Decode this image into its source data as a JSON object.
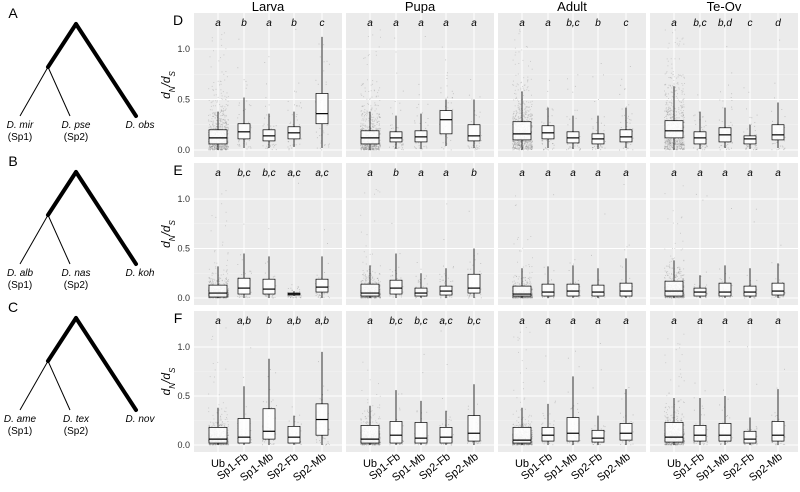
{
  "trees": [
    {
      "label": "A",
      "sp1": "D. mir",
      "sp1_tag": "(Sp1)",
      "sp2": "D. pse",
      "sp2_tag": "(Sp2)",
      "out": "D. obs"
    },
    {
      "label": "B",
      "sp1": "D. alb",
      "sp1_tag": "(Sp1)",
      "sp2": "D. nas",
      "sp2_tag": "(Sp2)",
      "out": "D. koh"
    },
    {
      "label": "C",
      "sp1": "D. ame",
      "sp1_tag": "(Sp1)",
      "sp2": "D. tex",
      "sp2_tag": "(Sp2)",
      "out": "D. nov"
    }
  ],
  "chart_data": {
    "type": "boxplot",
    "panel_rows": [
      "D",
      "E",
      "F"
    ],
    "stages": [
      "Larva",
      "Pupa",
      "Adult",
      "Te-Ov"
    ],
    "categories": [
      "Ub",
      "Sp1-Fb",
      "Sp1-Mb",
      "Sp2-Fb",
      "Sp2-Mb"
    ],
    "ylabel_main": "d",
    "ylabel_num_sub": "N",
    "ylabel_slash": "/d",
    "ylabel_den_sub": "S",
    "ylim": [
      0,
      1.25
    ],
    "yticks": [
      "0.0",
      "0.5",
      "1.0"
    ],
    "background": "#ebebeb",
    "grid": true,
    "rows": [
      {
        "panel": "D",
        "groups": [
          {
            "stage": "Larva",
            "letters": [
              "a",
              "b",
              "a",
              "b",
              "c"
            ],
            "boxes": [
              [
                0.0,
                0.06,
                0.12,
                0.2,
                0.38
              ],
              [
                0.02,
                0.11,
                0.18,
                0.26,
                0.52
              ],
              [
                0.02,
                0.09,
                0.14,
                0.2,
                0.36
              ],
              [
                0.03,
                0.11,
                0.17,
                0.23,
                0.38
              ],
              [
                0.02,
                0.26,
                0.36,
                0.56,
                1.12
              ]
            ]
          },
          {
            "stage": "Pupa",
            "letters": [
              "a",
              "a",
              "a",
              "a",
              "a"
            ],
            "boxes": [
              [
                0.0,
                0.06,
                0.12,
                0.19,
                0.38
              ],
              [
                0.01,
                0.08,
                0.12,
                0.18,
                0.34
              ],
              [
                0.01,
                0.08,
                0.13,
                0.19,
                0.36
              ],
              [
                0.04,
                0.16,
                0.3,
                0.39,
                0.5
              ],
              [
                0.02,
                0.09,
                0.14,
                0.25,
                0.5
              ]
            ]
          },
          {
            "stage": "Adult",
            "letters": [
              "a",
              "a",
              "b,c",
              "b",
              "c"
            ],
            "boxes": [
              [
                0.0,
                0.1,
                0.16,
                0.28,
                0.58
              ],
              [
                0.02,
                0.11,
                0.17,
                0.24,
                0.42
              ],
              [
                0.01,
                0.07,
                0.12,
                0.18,
                0.34
              ],
              [
                0.01,
                0.06,
                0.11,
                0.16,
                0.34
              ],
              [
                0.02,
                0.08,
                0.13,
                0.2,
                0.42
              ]
            ]
          },
          {
            "stage": "Te-Ov",
            "letters": [
              "a",
              "b,c",
              "b,d",
              "c",
              "d"
            ],
            "boxes": [
              [
                0.0,
                0.12,
                0.19,
                0.29,
                0.63
              ],
              [
                0.01,
                0.06,
                0.12,
                0.18,
                0.38
              ],
              [
                0.02,
                0.08,
                0.15,
                0.22,
                0.42
              ],
              [
                0.01,
                0.06,
                0.11,
                0.14,
                0.25
              ],
              [
                0.02,
                0.1,
                0.15,
                0.25,
                0.47
              ]
            ]
          }
        ]
      },
      {
        "panel": "E",
        "groups": [
          {
            "stage": "Larva",
            "letters": [
              "a",
              "b,c",
              "b,c",
              "a,c",
              "a,c"
            ],
            "boxes": [
              [
                0.0,
                0.01,
                0.05,
                0.13,
                0.32
              ],
              [
                0.0,
                0.04,
                0.1,
                0.2,
                0.45
              ],
              [
                0.0,
                0.04,
                0.09,
                0.19,
                0.42
              ],
              [
                0.02,
                0.03,
                0.04,
                0.05,
                0.07
              ],
              [
                0.0,
                0.06,
                0.11,
                0.19,
                0.42
              ]
            ]
          },
          {
            "stage": "Pupa",
            "letters": [
              "a",
              "b",
              "a",
              "a",
              "b"
            ],
            "boxes": [
              [
                0.0,
                0.02,
                0.05,
                0.14,
                0.33
              ],
              [
                0.0,
                0.04,
                0.1,
                0.18,
                0.45
              ],
              [
                0.0,
                0.02,
                0.05,
                0.1,
                0.25
              ],
              [
                0.0,
                0.03,
                0.07,
                0.12,
                0.3
              ],
              [
                0.0,
                0.05,
                0.1,
                0.24,
                0.5
              ]
            ]
          },
          {
            "stage": "Adult",
            "letters": [
              "a",
              "a",
              "a",
              "a",
              "a"
            ],
            "boxes": [
              [
                0.0,
                0.02,
                0.04,
                0.12,
                0.3
              ],
              [
                0.0,
                0.02,
                0.06,
                0.14,
                0.32
              ],
              [
                0.0,
                0.02,
                0.07,
                0.14,
                0.33
              ],
              [
                0.0,
                0.02,
                0.06,
                0.13,
                0.3
              ],
              [
                0.0,
                0.02,
                0.07,
                0.15,
                0.4
              ]
            ]
          },
          {
            "stage": "Te-Ov",
            "letters": [
              "a",
              "a",
              "a",
              "a",
              "a"
            ],
            "boxes": [
              [
                0.0,
                0.02,
                0.07,
                0.17,
                0.38
              ],
              [
                0.0,
                0.02,
                0.06,
                0.1,
                0.23
              ],
              [
                0.0,
                0.02,
                0.06,
                0.15,
                0.33
              ],
              [
                0.0,
                0.02,
                0.06,
                0.12,
                0.3
              ],
              [
                0.0,
                0.03,
                0.07,
                0.15,
                0.35
              ]
            ]
          }
        ]
      },
      {
        "panel": "F",
        "groups": [
          {
            "stage": "Larva",
            "letters": [
              "a",
              "a,b",
              "b",
              "a,b",
              "a,b"
            ],
            "boxes": [
              [
                0.0,
                0.02,
                0.06,
                0.18,
                0.38
              ],
              [
                0.0,
                0.02,
                0.08,
                0.27,
                0.6
              ],
              [
                0.0,
                0.06,
                0.14,
                0.37,
                0.88
              ],
              [
                0.0,
                0.02,
                0.08,
                0.19,
                0.3
              ],
              [
                0.0,
                0.1,
                0.26,
                0.42,
                0.95
              ]
            ]
          },
          {
            "stage": "Pupa",
            "letters": [
              "a",
              "b,c",
              "b,c",
              "a,c",
              "b,c"
            ],
            "boxes": [
              [
                0.0,
                0.02,
                0.06,
                0.2,
                0.4
              ],
              [
                0.0,
                0.02,
                0.1,
                0.24,
                0.56
              ],
              [
                0.0,
                0.02,
                0.07,
                0.23,
                0.45
              ],
              [
                0.0,
                0.02,
                0.08,
                0.18,
                0.35
              ],
              [
                0.0,
                0.04,
                0.12,
                0.3,
                0.62
              ]
            ]
          },
          {
            "stage": "Adult",
            "letters": [
              "a",
              "a",
              "a",
              "a",
              "a"
            ],
            "boxes": [
              [
                0.0,
                0.02,
                0.05,
                0.18,
                0.38
              ],
              [
                0.0,
                0.04,
                0.1,
                0.18,
                0.42
              ],
              [
                0.0,
                0.04,
                0.12,
                0.28,
                0.7
              ],
              [
                0.0,
                0.03,
                0.07,
                0.15,
                0.3
              ],
              [
                0.0,
                0.05,
                0.12,
                0.22,
                0.57
              ]
            ]
          },
          {
            "stage": "Te-Ov",
            "letters": [
              "a",
              "a",
              "a",
              "a",
              "a"
            ],
            "boxes": [
              [
                0.0,
                0.03,
                0.08,
                0.23,
                0.48
              ],
              [
                0.0,
                0.04,
                0.1,
                0.2,
                0.48
              ],
              [
                0.0,
                0.04,
                0.1,
                0.22,
                0.5
              ],
              [
                0.0,
                0.02,
                0.06,
                0.14,
                0.28
              ],
              [
                0.0,
                0.04,
                0.1,
                0.24,
                0.57
              ]
            ]
          }
        ]
      }
    ]
  }
}
